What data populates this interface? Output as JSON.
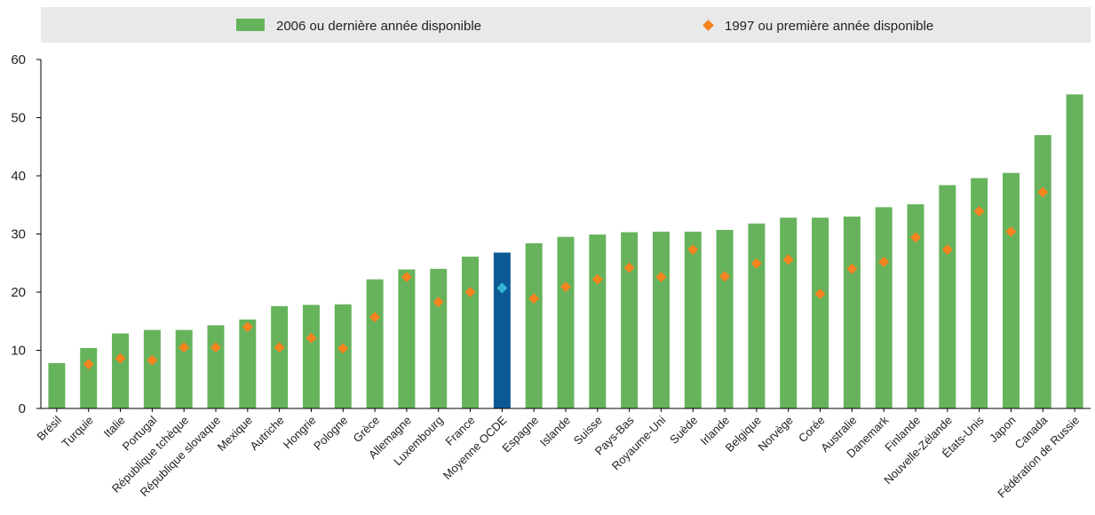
{
  "chart_data": {
    "type": "bar",
    "legend_position": "top",
    "ylim": [
      0,
      60
    ],
    "yticks": [
      0,
      10,
      20,
      30,
      40,
      50,
      60
    ],
    "grid": false,
    "colors": {
      "bar": "#66b35c",
      "bar_highlight": "#0b5a96",
      "marker": "#f5841f",
      "marker_highlight": "#33b6d6",
      "legend_band": "#e8e9ea"
    },
    "highlight_category": "Moyenne OCDE",
    "categories": [
      "Brésil",
      "Turquie",
      "Italie",
      "Portugal",
      "République tchèque",
      "République slovaque",
      "Mexique",
      "Autriche",
      "Hongrie",
      "Pologne",
      "Grèce",
      "Allemagne",
      "Luxembourg",
      "France",
      "Moyenne OCDE",
      "Espagne",
      "Islande",
      "Suisse",
      "Pays-Bas",
      "Royaume-Uni",
      "Suède",
      "Irlande",
      "Belgique",
      "Norvège",
      "Corée",
      "Australie",
      "Danemark",
      "Finlande",
      "Nouvelle-Zélande",
      "États-Unis",
      "Japon",
      "Canada",
      "Fédération de Russie"
    ],
    "series": [
      {
        "name": "2006 ou dernière année disponible",
        "kind": "bar",
        "values": [
          7.8,
          10.4,
          12.9,
          13.5,
          13.5,
          14.3,
          15.3,
          17.6,
          17.8,
          17.9,
          22.2,
          23.9,
          24.0,
          26.1,
          26.8,
          28.4,
          29.5,
          29.9,
          30.3,
          30.4,
          30.4,
          30.7,
          31.8,
          32.8,
          32.8,
          33.0,
          34.6,
          35.1,
          38.4,
          39.6,
          40.5,
          47.0,
          54.0
        ]
      },
      {
        "name": "1997 ou première année disponible",
        "kind": "marker",
        "values": [
          null,
          7.6,
          8.6,
          8.3,
          10.5,
          10.5,
          14.0,
          10.5,
          12.1,
          10.3,
          15.7,
          22.6,
          18.3,
          20.0,
          20.7,
          18.9,
          20.9,
          22.2,
          24.2,
          22.6,
          27.3,
          22.7,
          24.9,
          25.6,
          19.7,
          24.0,
          25.2,
          29.4,
          27.3,
          33.9,
          30.4,
          37.2,
          null
        ]
      }
    ]
  }
}
